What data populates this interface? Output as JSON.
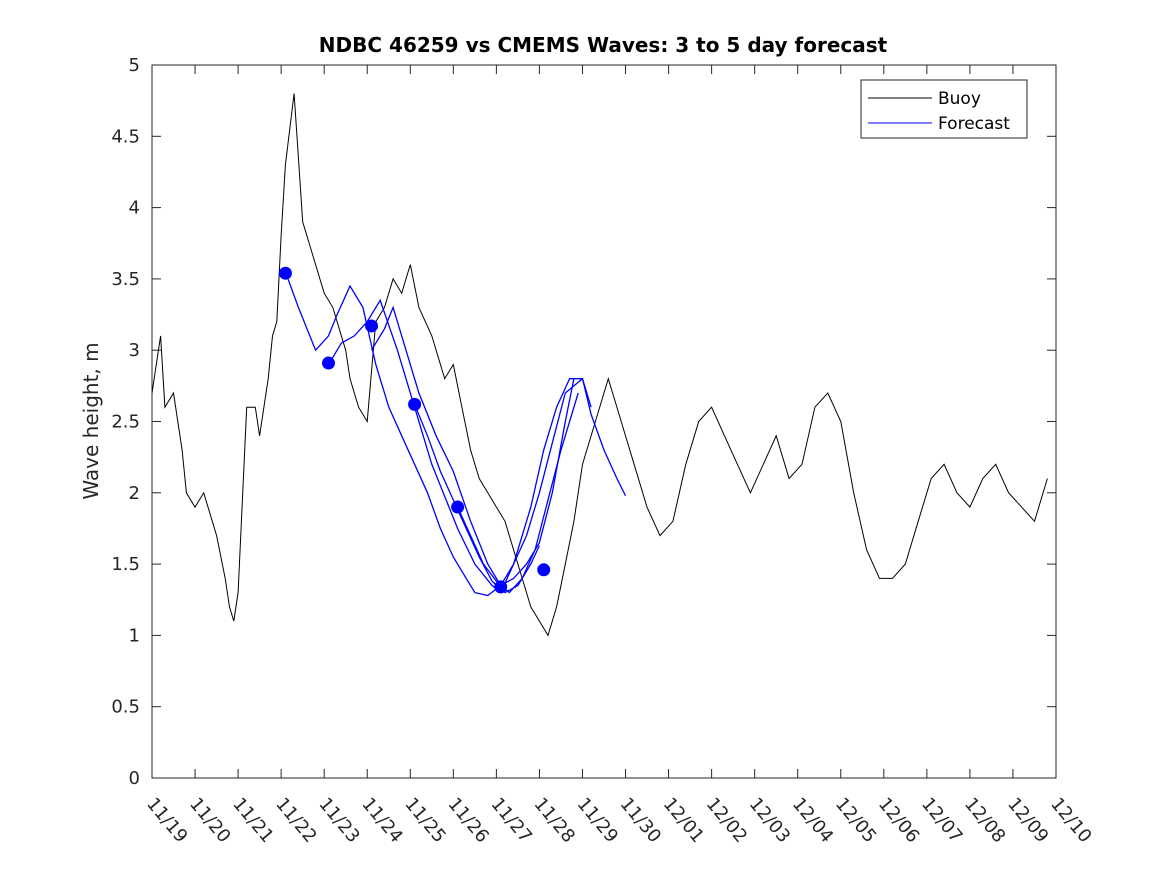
{
  "chart_data": {
    "type": "line",
    "title": "NDBC 46259 vs CMEMS Waves: 3 to 5 day forecast",
    "xlabel": "",
    "ylabel": "Wave height, m",
    "x_start_day": 0,
    "xlim": [
      0,
      21
    ],
    "ylim": [
      0,
      5
    ],
    "yticks": [
      0,
      0.5,
      1,
      1.5,
      2,
      2.5,
      3,
      3.5,
      4,
      4.5,
      5
    ],
    "ytick_labels": [
      "0",
      "0.5",
      "1",
      "1.5",
      "2",
      "2.5",
      "3",
      "3.5",
      "4",
      "4.5",
      "5"
    ],
    "xtick_labels": [
      "11/19",
      "11/20",
      "11/21",
      "11/22",
      "11/23",
      "11/24",
      "11/25",
      "11/26",
      "11/27",
      "11/28",
      "11/29",
      "11/30",
      "12/01",
      "12/02",
      "12/03",
      "12/04",
      "12/05",
      "12/06",
      "12/07",
      "12/08",
      "12/09",
      "12/10"
    ],
    "grid": false,
    "legend_position": "top-right",
    "legend": [
      "Buoy",
      "Forecast"
    ],
    "colors": {
      "buoy": "#000000",
      "forecast": "#0000ff"
    },
    "buoy": {
      "name": "Buoy",
      "days": [
        0,
        0.2,
        0.3,
        0.5,
        0.7,
        0.8,
        1.0,
        1.2,
        1.4,
        1.5,
        1.7,
        1.8,
        1.9,
        2.0,
        2.2,
        2.4,
        2.5,
        2.7,
        2.8,
        2.9,
        3.0,
        3.1,
        3.3,
        3.5,
        3.7,
        3.9,
        4.0,
        4.2,
        4.3,
        4.5,
        4.6,
        4.8,
        5.0,
        5.2,
        5.4,
        5.6,
        5.8,
        6.0,
        6.2,
        6.5,
        6.8,
        7.0,
        7.2,
        7.4,
        7.6,
        7.8,
        8.0,
        8.2,
        8.4,
        8.6,
        8.8,
        9.0,
        9.2,
        9.4,
        9.6,
        9.8,
        10.0,
        10.3,
        10.6,
        10.9,
        11.2,
        11.5,
        11.8,
        12.1,
        12.4,
        12.7,
        13.0,
        13.3,
        13.6,
        13.9,
        14.2,
        14.5,
        14.8,
        15.1,
        15.4,
        15.7,
        16.0,
        16.3,
        16.6,
        16.9,
        17.2,
        17.5,
        17.8,
        18.1,
        18.4,
        18.7,
        19.0,
        19.3,
        19.6,
        19.9,
        20.2,
        20.5,
        20.8
      ],
      "values": [
        2.7,
        3.1,
        2.6,
        2.7,
        2.3,
        2.0,
        1.9,
        2.0,
        1.8,
        1.7,
        1.4,
        1.2,
        1.1,
        1.3,
        2.6,
        2.6,
        2.4,
        2.8,
        3.1,
        3.2,
        3.8,
        4.3,
        4.8,
        3.9,
        3.7,
        3.5,
        3.4,
        3.3,
        3.2,
        3.0,
        2.8,
        2.6,
        2.5,
        3.2,
        3.3,
        3.5,
        3.4,
        3.6,
        3.3,
        3.1,
        2.8,
        2.9,
        2.6,
        2.3,
        2.1,
        2.0,
        1.9,
        1.8,
        1.6,
        1.4,
        1.2,
        1.1,
        1.0,
        1.2,
        1.5,
        1.8,
        2.2,
        2.5,
        2.8,
        2.5,
        2.2,
        1.9,
        1.7,
        1.8,
        2.2,
        2.5,
        2.6,
        2.4,
        2.2,
        2.0,
        2.2,
        2.4,
        2.1,
        2.2,
        2.6,
        2.7,
        2.5,
        2.0,
        1.6,
        1.4,
        1.4,
        1.5,
        1.8,
        2.1,
        2.2,
        2.0,
        1.9,
        2.1,
        2.2,
        2.0,
        1.9,
        1.8,
        2.1
      ]
    },
    "forecast_runs": [
      {
        "days": [
          3.1,
          3.4,
          3.8,
          4.1,
          4.3,
          4.6,
          4.9,
          5.2,
          5.5,
          5.8,
          6.1,
          6.4,
          6.7,
          7.0,
          7.3,
          7.5,
          7.8,
          8.1,
          8.4,
          8.7,
          9.0,
          9.3,
          9.6,
          10.0,
          10.2,
          10.5,
          10.8,
          11.0
        ],
        "values": [
          3.55,
          3.3,
          3.0,
          3.1,
          3.25,
          3.45,
          3.3,
          2.9,
          2.6,
          2.4,
          2.2,
          2.0,
          1.75,
          1.55,
          1.4,
          1.3,
          1.28,
          1.35,
          1.5,
          1.7,
          2.0,
          2.35,
          2.7,
          2.8,
          2.55,
          2.3,
          2.1,
          1.98
        ]
      },
      {
        "days": [
          4.1,
          4.4,
          4.7,
          5.0,
          5.3,
          5.7,
          6.1,
          6.5,
          6.9,
          7.1,
          7.5,
          7.9,
          8.1,
          8.4,
          8.8,
          9.1,
          9.4,
          9.7,
          10.0,
          10.2
        ],
        "values": [
          2.9,
          3.05,
          3.1,
          3.2,
          3.35,
          3.0,
          2.6,
          2.2,
          1.9,
          1.75,
          1.5,
          1.35,
          1.3,
          1.5,
          1.9,
          2.3,
          2.6,
          2.8,
          2.8,
          2.6
        ]
      },
      {
        "days": [
          5.1,
          5.4,
          5.6,
          5.9,
          6.2,
          6.6,
          7.0,
          7.4,
          7.8,
          8.1,
          8.4,
          8.7,
          9.0,
          9.3,
          9.6,
          9.8
        ],
        "values": [
          3.0,
          3.15,
          3.3,
          3.0,
          2.7,
          2.4,
          2.15,
          1.8,
          1.5,
          1.35,
          1.4,
          1.5,
          1.65,
          2.0,
          2.5,
          2.8
        ]
      },
      {
        "days": [
          6.1,
          6.4,
          6.7,
          7.0,
          7.3,
          7.6,
          7.9,
          8.2,
          8.5,
          8.8,
          9.0
        ],
        "values": [
          2.62,
          2.4,
          2.15,
          1.95,
          1.75,
          1.55,
          1.38,
          1.3,
          1.35,
          1.5,
          1.63
        ]
      },
      {
        "days": [
          7.1,
          7.4,
          7.7,
          8.0,
          8.3,
          8.6,
          8.9,
          9.2,
          9.5,
          9.9
        ],
        "values": [
          1.9,
          1.7,
          1.5,
          1.38,
          1.3,
          1.4,
          1.6,
          1.95,
          2.3,
          2.7
        ]
      }
    ],
    "forecast_markers": {
      "days": [
        3.1,
        4.1,
        5.1,
        6.1,
        7.1,
        8.1,
        9.1
      ],
      "values": [
        3.54,
        2.91,
        3.17,
        2.62,
        1.9,
        1.34,
        1.46
      ]
    }
  }
}
